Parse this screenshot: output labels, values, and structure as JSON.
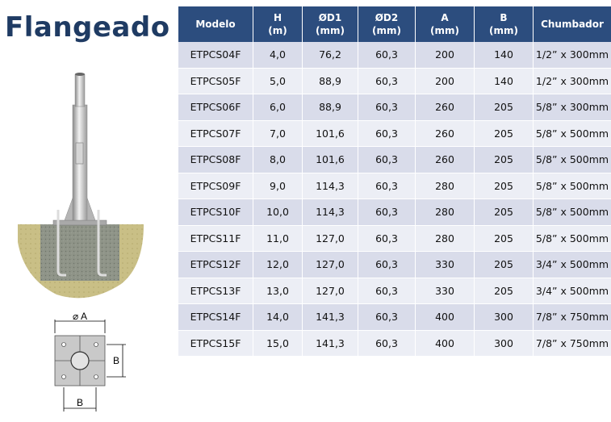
{
  "title": "Flangeado",
  "table": {
    "headers": [
      {
        "line1": "Modelo",
        "line2": ""
      },
      {
        "line1": "H",
        "line2": "(m)"
      },
      {
        "line1": "ØD1",
        "line2": "(mm)"
      },
      {
        "line1": "ØD2",
        "line2": "(mm)"
      },
      {
        "line1": "A",
        "line2": "(mm)"
      },
      {
        "line1": "B",
        "line2": "(mm)"
      },
      {
        "line1": "Chumbador",
        "line2": ""
      }
    ],
    "rows": [
      [
        "ETPCS04F",
        "4,0",
        "76,2",
        "60,3",
        "200",
        "140",
        "1/2” x 300mm"
      ],
      [
        "ETPCS05F",
        "5,0",
        "88,9",
        "60,3",
        "200",
        "140",
        "1/2” x 300mm"
      ],
      [
        "ETPCS06F",
        "6,0",
        "88,9",
        "60,3",
        "260",
        "205",
        "5/8” x 300mm"
      ],
      [
        "ETPCS07F",
        "7,0",
        "101,6",
        "60,3",
        "260",
        "205",
        "5/8” x 500mm"
      ],
      [
        "ETPCS08F",
        "8,0",
        "101,6",
        "60,3",
        "260",
        "205",
        "5/8” x 500mm"
      ],
      [
        "ETPCS09F",
        "9,0",
        "114,3",
        "60,3",
        "280",
        "205",
        "5/8” x 500mm"
      ],
      [
        "ETPCS10F",
        "10,0",
        "114,3",
        "60,3",
        "280",
        "205",
        "5/8” x 500mm"
      ],
      [
        "ETPCS11F",
        "11,0",
        "127,0",
        "60,3",
        "280",
        "205",
        "5/8” x 500mm"
      ],
      [
        "ETPCS12F",
        "12,0",
        "127,0",
        "60,3",
        "330",
        "205",
        "3/4” x 500mm"
      ],
      [
        "ETPCS13F",
        "13,0",
        "127,0",
        "60,3",
        "330",
        "205",
        "3/4” x 500mm"
      ],
      [
        "ETPCS14F",
        "14,0",
        "141,3",
        "60,3",
        "400",
        "300",
        "7/8” x 750mm"
      ],
      [
        "ETPCS15F",
        "15,0",
        "141,3",
        "60,3",
        "400",
        "300",
        "7/8” x 750mm"
      ]
    ]
  },
  "diagram": {
    "dim_a": "⌀ A",
    "dim_b_side": "B",
    "dim_b_bottom": "B"
  },
  "colors": {
    "header_bg": "#2c4d7e",
    "row_odd": "#d9dcea",
    "row_even": "#eceef5",
    "title": "#1f3b63"
  }
}
